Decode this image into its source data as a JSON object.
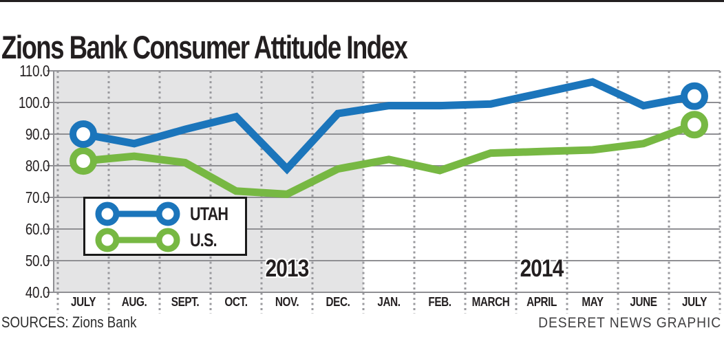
{
  "header": {
    "title": "Zions Bank Consumer Attitude Index"
  },
  "chart_data": {
    "type": "line",
    "title": "Zions Bank Consumer Attitude Index",
    "categories": [
      "JULY",
      "AUG.",
      "SEPT.",
      "OCT.",
      "NOV.",
      "DEC.",
      "JAN.",
      "FEB.",
      "MARCH",
      "APRIL",
      "MAY",
      "JUNE",
      "JULY"
    ],
    "series": [
      {
        "name": "UTAH",
        "color": "#1b75bb",
        "values": [
          90,
          87,
          91.5,
          95.5,
          79,
          96.5,
          99,
          99,
          99.5,
          103,
          106.5,
          99,
          102
        ]
      },
      {
        "name": "U.S.",
        "color": "#77b843",
        "values": [
          81.5,
          83,
          81,
          72,
          71,
          79,
          82,
          78.5,
          84,
          84.5,
          85,
          87,
          93
        ]
      }
    ],
    "ylim": [
      40,
      110
    ],
    "yticks": [
      "110.0",
      "100.0",
      "90.0",
      "80.0",
      "70.0",
      "60.0",
      "50.0",
      "40.0"
    ],
    "ytick_values": [
      110,
      100,
      90,
      80,
      70,
      60,
      50,
      40
    ],
    "grid": true,
    "markers": "endpoints-only",
    "legend_position": "inside-left",
    "year_labels": [
      {
        "text": "2013",
        "month_index": 4
      },
      {
        "text": "2014",
        "month_index": 9
      }
    ],
    "shaded_region": {
      "from_index": 0,
      "to_index": 5,
      "color": "#e4e4e5",
      "meaning": "2013"
    }
  },
  "legend": {
    "items": [
      {
        "label": "UTAH",
        "color": "#1b75bb"
      },
      {
        "label": "U.S.",
        "color": "#77b843"
      }
    ]
  },
  "footer": {
    "sources": "SOURCES: Zions Bank",
    "credit": "DESERET NEWS GRAPHIC"
  },
  "colors": {
    "utah": "#1b75bb",
    "us": "#77b843",
    "grid_solid": "#8f8f93",
    "grid_dotted": "#9a9a9e",
    "shading": "#e4e4e5",
    "text": "#231f20"
  }
}
